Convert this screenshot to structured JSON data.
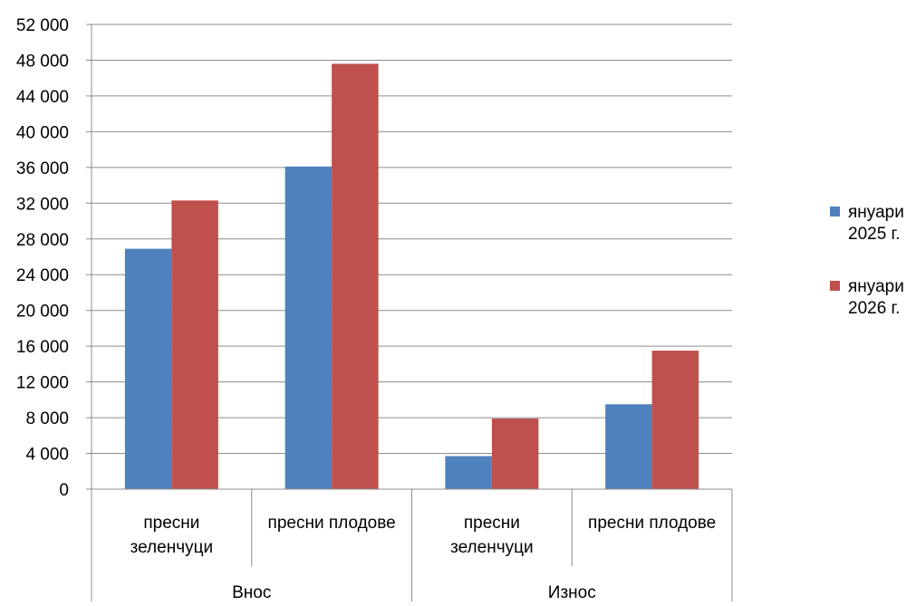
{
  "chart_data": {
    "type": "bar",
    "groups": [
      {
        "label": "Внос",
        "categories": [
          [
            "пресни",
            "зеленчуци"
          ],
          [
            "пресни плодове"
          ]
        ]
      },
      {
        "label": "Износ",
        "categories": [
          [
            "пресни",
            "зеленчуци"
          ],
          [
            "пресни плодове"
          ]
        ]
      }
    ],
    "series": [
      {
        "name": "януари 2025 г.",
        "legend_lines": [
          "януари",
          "2025 г."
        ],
        "color": "#4f81bd",
        "values": [
          26900,
          36100,
          3700,
          9500
        ]
      },
      {
        "name": "януари 2026 г.",
        "legend_lines": [
          "януари",
          "2026 г."
        ],
        "color": "#c0504d",
        "values": [
          32300,
          47600,
          7900,
          15500
        ]
      }
    ],
    "ylim": [
      0,
      52000
    ],
    "yticks": [
      "0",
      "4 000",
      "8 000",
      "12 000",
      "16 000",
      "20 000",
      "24 000",
      "28 000",
      "32 000",
      "36 000",
      "40 000",
      "44 000",
      "48 000",
      "52 000"
    ],
    "grid": true,
    "legend_position": "right"
  }
}
